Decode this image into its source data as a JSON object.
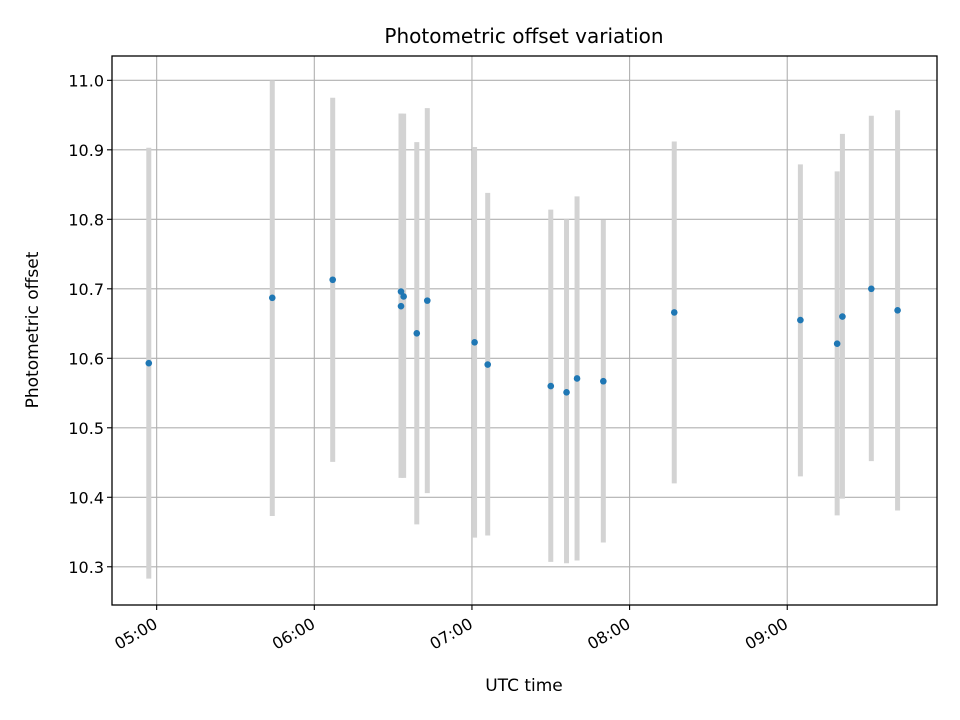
{
  "chart_data": {
    "type": "scatter",
    "title": "Photometric offset variation",
    "xlabel": "UTC time",
    "ylabel": "Photometric offset",
    "x_tick_labels": [
      "05:00",
      "06:00",
      "07:00",
      "08:00",
      "09:00"
    ],
    "x_tick_values": [
      "05:00",
      "06:00",
      "07:00",
      "08:00",
      "09:00"
    ],
    "y_tick_labels": [
      "10.3",
      "10.4",
      "10.5",
      "10.6",
      "10.7",
      "10.8",
      "10.9",
      "11.0"
    ],
    "y_tick_values": [
      10.3,
      10.4,
      10.5,
      10.6,
      10.7,
      10.8,
      10.9,
      11.0
    ],
    "xlim": [
      "04:43",
      "09:57"
    ],
    "ylim": [
      10.245,
      11.035
    ],
    "grid": true,
    "point_color": "#1f77b4",
    "errorbar_color": "#d3d3d3",
    "points": [
      {
        "x": "04:57",
        "y": 10.593,
        "lo": 10.283,
        "hi": 10.903
      },
      {
        "x": "05:44",
        "y": 10.687,
        "lo": 10.373,
        "hi": 11.0
      },
      {
        "x": "06:07",
        "y": 10.713,
        "lo": 10.451,
        "hi": 10.975
      },
      {
        "x": "06:33",
        "y": 10.696,
        "lo": 10.44,
        "hi": 10.952
      },
      {
        "x": "06:33",
        "y": 10.675,
        "lo": 10.428,
        "hi": 10.952
      },
      {
        "x": "06:34",
        "y": 10.689,
        "lo": 10.428,
        "hi": 10.952
      },
      {
        "x": "06:39",
        "y": 10.636,
        "lo": 10.361,
        "hi": 10.911
      },
      {
        "x": "06:43",
        "y": 10.683,
        "lo": 10.406,
        "hi": 10.96
      },
      {
        "x": "07:01",
        "y": 10.623,
        "lo": 10.342,
        "hi": 10.904
      },
      {
        "x": "07:06",
        "y": 10.591,
        "lo": 10.345,
        "hi": 10.838
      },
      {
        "x": "07:30",
        "y": 10.56,
        "lo": 10.307,
        "hi": 10.814
      },
      {
        "x": "07:36",
        "y": 10.551,
        "lo": 10.305,
        "hi": 10.8
      },
      {
        "x": "07:40",
        "y": 10.571,
        "lo": 10.309,
        "hi": 10.833
      },
      {
        "x": "07:50",
        "y": 10.567,
        "lo": 10.335,
        "hi": 10.799
      },
      {
        "x": "08:17",
        "y": 10.666,
        "lo": 10.42,
        "hi": 10.912
      },
      {
        "x": "09:05",
        "y": 10.655,
        "lo": 10.43,
        "hi": 10.879
      },
      {
        "x": "09:19",
        "y": 10.621,
        "lo": 10.374,
        "hi": 10.869
      },
      {
        "x": "09:21",
        "y": 10.66,
        "lo": 10.398,
        "hi": 10.923
      },
      {
        "x": "09:32",
        "y": 10.7,
        "lo": 10.452,
        "hi": 10.949
      },
      {
        "x": "09:42",
        "y": 10.669,
        "lo": 10.381,
        "hi": 10.957
      }
    ]
  }
}
